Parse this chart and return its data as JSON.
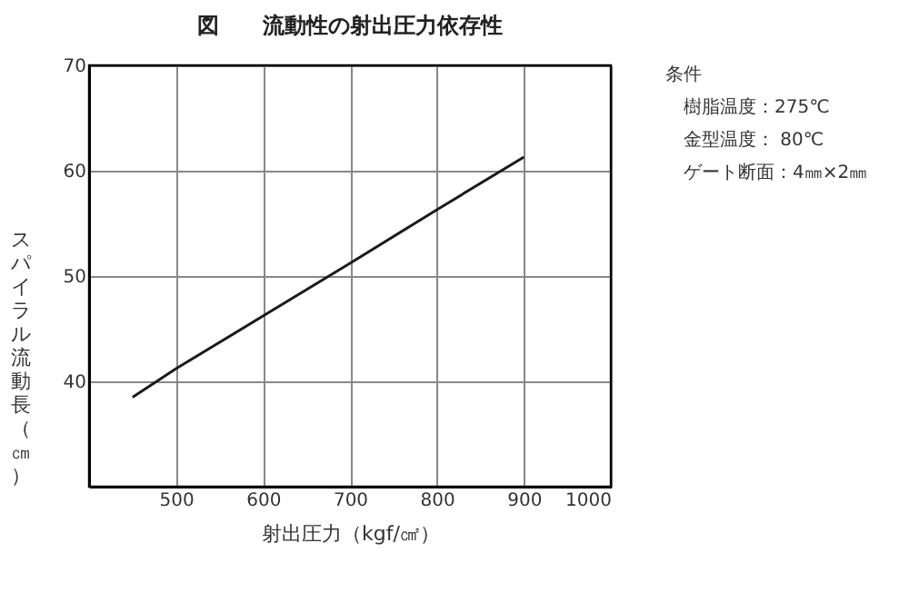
{
  "chart_data": {
    "type": "line",
    "title": "図　　流動性の射出圧力依存性",
    "xlabel": "射出圧力（kgf/㎠）",
    "ylabel": "スパイラル流動長（㎝）",
    "x": [
      450,
      500,
      600,
      700,
      800,
      900
    ],
    "series": [
      {
        "color": "#1a1a1a",
        "values": [
          38.5,
          41.2,
          46.2,
          51.2,
          56.3,
          61.3
        ]
      }
    ],
    "xlim": [
      400,
      1000
    ],
    "xticks": [
      500,
      600,
      700,
      800,
      900,
      1000
    ],
    "ylim": [
      30,
      70
    ],
    "yticks": [
      40,
      50,
      60,
      70
    ],
    "grid": true,
    "marker": "none",
    "line_style": "solid",
    "annotations": [
      "条件",
      "樹脂温度：275℃",
      "金型温度： 80℃",
      "ゲート断面：4㎜×2㎜"
    ]
  }
}
